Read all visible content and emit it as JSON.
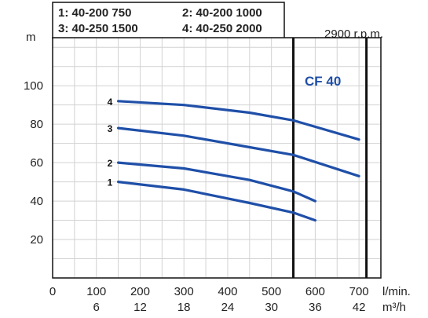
{
  "chart_data": {
    "type": "line",
    "legend_rows": [
      [
        "1: 40-200 750",
        "2: 40-200 1000"
      ],
      [
        "3: 40-250 1500",
        "4: 40-250 2000"
      ]
    ],
    "speed_label": "2900 r.p.m.",
    "badge": "CF 40",
    "ylabel": "m",
    "xlabel_primary": "l/min.",
    "xlabel_secondary": "m³/h",
    "y_ticks": [
      20,
      40,
      60,
      80,
      100
    ],
    "x_ticks": [
      0,
      100,
      200,
      300,
      400,
      500,
      600,
      700
    ],
    "x2_ticks": [
      6,
      12,
      18,
      24,
      30,
      36,
      42
    ],
    "xlim": [
      0,
      750
    ],
    "ylim": [
      0,
      125
    ],
    "vertical_lines": [
      550,
      717
    ],
    "series": [
      {
        "name": "1",
        "x": [
          150,
          300,
          450,
          550,
          600
        ],
        "y": [
          50,
          46,
          39,
          34,
          30
        ]
      },
      {
        "name": "2",
        "x": [
          150,
          300,
          450,
          550,
          600
        ],
        "y": [
          60,
          57,
          51,
          45,
          40
        ]
      },
      {
        "name": "3",
        "x": [
          150,
          300,
          450,
          550,
          700
        ],
        "y": [
          78,
          74,
          68,
          64,
          53
        ]
      },
      {
        "name": "4",
        "x": [
          150,
          300,
          450,
          550,
          700
        ],
        "y": [
          92,
          90,
          86,
          82,
          72
        ]
      }
    ],
    "colors": {
      "curve": "#1f4fa8",
      "badge": "#1f4fa8",
      "grid": "#d2d2d2",
      "frame": "#111111"
    }
  }
}
